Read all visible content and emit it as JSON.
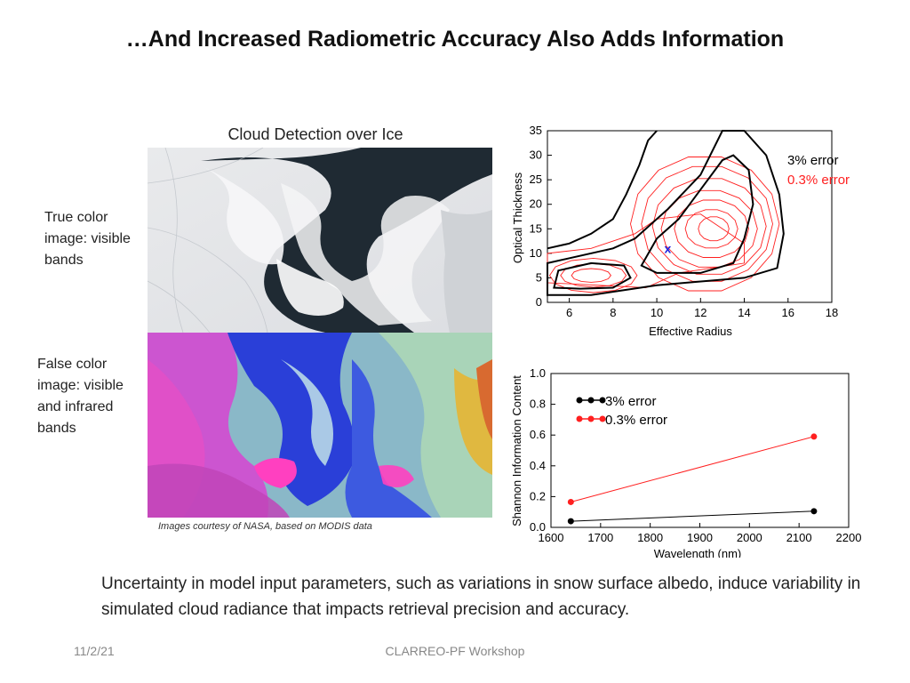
{
  "slide": {
    "title": "…And Increased Radiometric Accuracy Also Adds Information",
    "subtitle": "Cloud Detection over Ice",
    "label_true_color": "True color image: visible bands",
    "label_false_color": "False color image: visible and infrared bands",
    "image_credit": "Images courtesy of NASA, based on MODIS data",
    "caption": "Uncertainty in model input parameters, such as variations in snow surface albedo, induce variability in simulated cloud radiance that impacts retrieval precision and accuracy.",
    "footer_date": "11/2/21",
    "footer_event": "CLARREO-PF Workshop"
  },
  "chart_data": [
    {
      "type": "contour",
      "xlabel": "Effective Radius",
      "ylabel": "Optical Thickness",
      "xlim": [
        5,
        18
      ],
      "ylim": [
        0,
        35
      ],
      "xticks": [
        6,
        8,
        10,
        12,
        14,
        16,
        18
      ],
      "yticks": [
        0,
        5,
        10,
        15,
        20,
        25,
        30,
        35
      ],
      "legend": [
        {
          "name": "3% error",
          "color": "#000000"
        },
        {
          "name": "0.3% error",
          "color": "#ff2020"
        }
      ],
      "marker": {
        "label": "x",
        "x": 10.5,
        "y": 11,
        "color": "#2222dd"
      }
    },
    {
      "type": "line",
      "xlabel": "Wavelength (nm)",
      "ylabel": "Shannon Information Content",
      "xlim": [
        1600,
        2200
      ],
      "ylim": [
        0,
        1.0
      ],
      "xticks": [
        1600,
        1700,
        1800,
        1900,
        2000,
        2100,
        2200
      ],
      "yticks": [
        0.0,
        0.2,
        0.4,
        0.6,
        0.8,
        1.0
      ],
      "series": [
        {
          "name": "3% error",
          "color": "#000000",
          "x": [
            1640,
            2130
          ],
          "y": [
            0.04,
            0.105
          ]
        },
        {
          "name": "0.3% error",
          "color": "#ff2020",
          "x": [
            1640,
            2130
          ],
          "y": [
            0.165,
            0.59
          ]
        }
      ]
    }
  ]
}
